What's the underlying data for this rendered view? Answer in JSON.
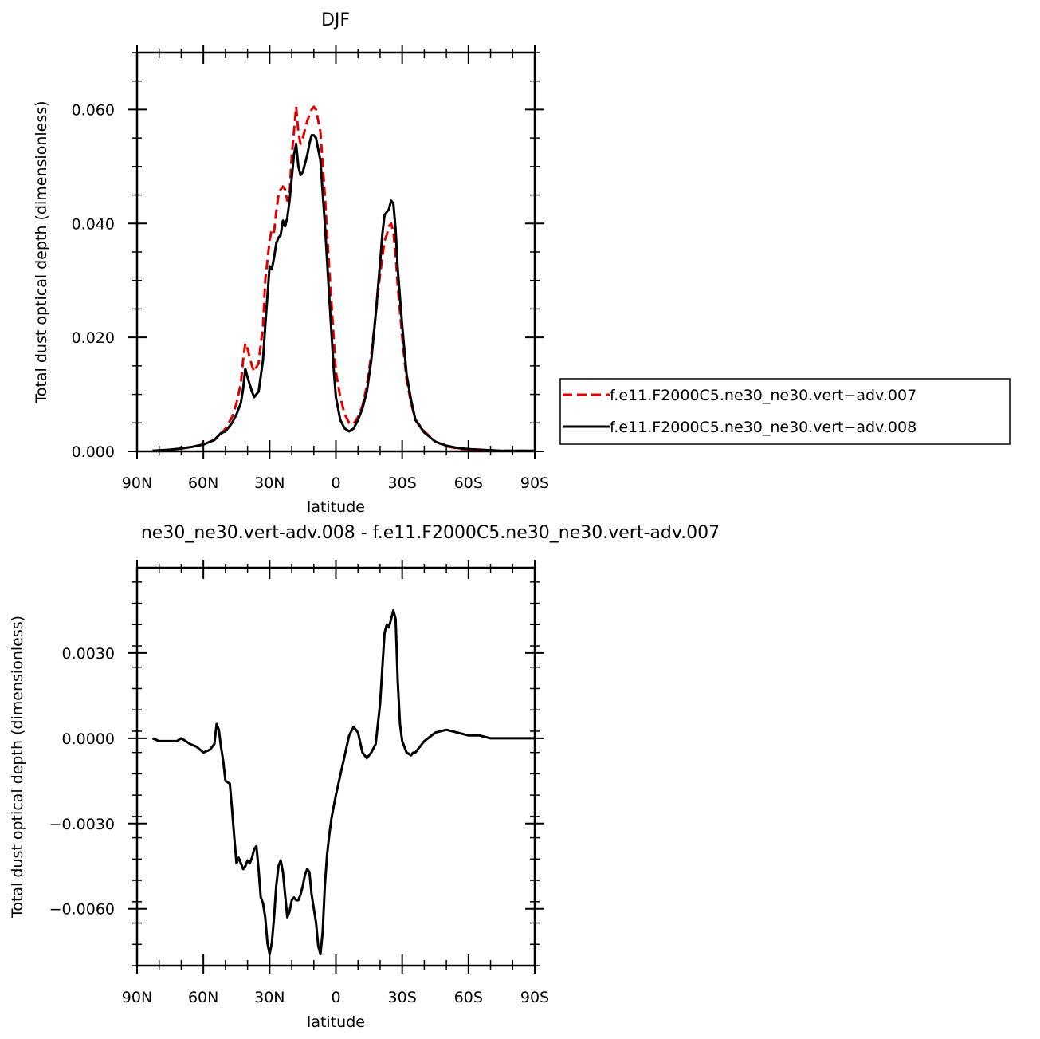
{
  "chart_data": [
    {
      "type": "line",
      "title": "DJF",
      "xlabel": "latitude",
      "ylabel": "Total dust optical depth (dimensionless)",
      "xlim": [
        90,
        -90
      ],
      "ylim": [
        0,
        0.07
      ],
      "x_ticks": [
        90,
        60,
        30,
        0,
        -30,
        -60,
        -90
      ],
      "x_tick_labels": [
        "90N",
        "60N",
        "30N",
        "0",
        "30S",
        "60S",
        "90S"
      ],
      "y_ticks": [
        0,
        0.02,
        0.04,
        0.06
      ],
      "y_tick_labels": [
        "0.000",
        "0.020",
        "0.040",
        "0.060"
      ],
      "legend_position": "right",
      "series": [
        {
          "name": "f.e11.F2000C5.ne30_ne30.vert-adv.007",
          "color": "#e00000",
          "dash": "dashed",
          "x": [
            83,
            75,
            70,
            65,
            60,
            55,
            52,
            50,
            47,
            45,
            43,
            42,
            41,
            40,
            38,
            37,
            35,
            33,
            32,
            30,
            29,
            28,
            27,
            26,
            25,
            24,
            23,
            22,
            21,
            20,
            19,
            18,
            17,
            16,
            15,
            13,
            12,
            11,
            10,
            9,
            7,
            5,
            3,
            1,
            0,
            -2,
            -4,
            -6,
            -8,
            -10,
            -12,
            -14,
            -16,
            -18,
            -20,
            -21,
            -22,
            -23,
            -24,
            -25,
            -26,
            -27,
            -28,
            -30,
            -32,
            -34,
            -36,
            -40,
            -45,
            -50,
            -55,
            -60,
            -65,
            -70,
            -75,
            -80,
            -90
          ],
          "y": [
            0.0001,
            0.0003,
            0.0005,
            0.0008,
            0.0012,
            0.002,
            0.003,
            0.004,
            0.006,
            0.0085,
            0.012,
            0.016,
            0.019,
            0.018,
            0.015,
            0.014,
            0.0155,
            0.022,
            0.03,
            0.037,
            0.039,
            0.0385,
            0.042,
            0.045,
            0.046,
            0.0465,
            0.046,
            0.044,
            0.045,
            0.052,
            0.056,
            0.0605,
            0.056,
            0.054,
            0.055,
            0.058,
            0.059,
            0.06,
            0.0605,
            0.06,
            0.056,
            0.045,
            0.032,
            0.02,
            0.014,
            0.0095,
            0.0065,
            0.005,
            0.0048,
            0.006,
            0.008,
            0.0115,
            0.017,
            0.024,
            0.031,
            0.034,
            0.037,
            0.038,
            0.0395,
            0.04,
            0.0385,
            0.0345,
            0.029,
            0.02,
            0.0125,
            0.0085,
            0.0055,
            0.0035,
            0.0017,
            0.0009,
            0.0005,
            0.0003,
            0.0002,
            0.0002,
            0.0001,
            0.0001,
            0.0001
          ]
        },
        {
          "name": "f.e11.F2000C5.ne30_ne30.vert-adv.008",
          "color": "#000000",
          "dash": "solid",
          "x": [
            83,
            75,
            70,
            65,
            60,
            55,
            52,
            50,
            47,
            45,
            43,
            42,
            41,
            40,
            38,
            37,
            35,
            33,
            32,
            30,
            29,
            28,
            27,
            26,
            25,
            24,
            23,
            22,
            21,
            20,
            19,
            18,
            17,
            16,
            15,
            13,
            12,
            11,
            10,
            9,
            7,
            5,
            3,
            1,
            0,
            -2,
            -4,
            -6,
            -8,
            -10,
            -12,
            -14,
            -16,
            -18,
            -20,
            -21,
            -22,
            -23,
            -24,
            -25,
            -26,
            -27,
            -28,
            -30,
            -32,
            -34,
            -36,
            -40,
            -45,
            -50,
            -55,
            -60,
            -65,
            -70,
            -75,
            -80,
            -90
          ],
          "y": [
            0.0001,
            0.0003,
            0.0005,
            0.0008,
            0.0012,
            0.002,
            0.0032,
            0.0035,
            0.005,
            0.0065,
            0.0085,
            0.011,
            0.0145,
            0.013,
            0.0105,
            0.0095,
            0.0105,
            0.016,
            0.022,
            0.0325,
            0.032,
            0.034,
            0.0365,
            0.0375,
            0.038,
            0.0405,
            0.0395,
            0.041,
            0.044,
            0.048,
            0.052,
            0.054,
            0.05,
            0.0485,
            0.049,
            0.052,
            0.054,
            0.0555,
            0.0555,
            0.055,
            0.051,
            0.04,
            0.027,
            0.0145,
            0.0095,
            0.0055,
            0.004,
            0.0035,
            0.004,
            0.0055,
            0.0075,
            0.0105,
            0.016,
            0.024,
            0.033,
            0.038,
            0.0415,
            0.042,
            0.0425,
            0.044,
            0.0435,
            0.039,
            0.032,
            0.022,
            0.0135,
            0.009,
            0.0055,
            0.0033,
            0.0017,
            0.001,
            0.0006,
            0.0004,
            0.0003,
            0.0002,
            0.0001,
            0.0001,
            0.0001
          ]
        }
      ]
    },
    {
      "type": "line",
      "title": "ne30_ne30.vert-adv.008 - f.e11.F2000C5.ne30_ne30.vert-adv.007",
      "xlabel": "latitude",
      "ylabel": "Total dust optical depth (dimensionless)",
      "xlim": [
        90,
        -90
      ],
      "ylim": [
        -0.008,
        0.006
      ],
      "x_ticks": [
        90,
        60,
        30,
        0,
        -30,
        -60,
        -90
      ],
      "x_tick_labels": [
        "90N",
        "60N",
        "30N",
        "0",
        "30S",
        "60S",
        "90S"
      ],
      "y_ticks": [
        -0.006,
        -0.003,
        0,
        0.003
      ],
      "y_tick_labels": [
        "-0.0060",
        "-0.0030",
        "0.0000",
        "0.0030"
      ],
      "series": [
        {
          "color": "#000000",
          "dash": "solid",
          "x": [
            83,
            80,
            75,
            72,
            70,
            68,
            66,
            63,
            60,
            57,
            55,
            54,
            53,
            52,
            51,
            50,
            48,
            47,
            46,
            45,
            44,
            43,
            42,
            41,
            40,
            39,
            38,
            37,
            36,
            35,
            34,
            33,
            32,
            31,
            30,
            29,
            28,
            27,
            26,
            25,
            24,
            23,
            22,
            21,
            20,
            19,
            18,
            17,
            16,
            15,
            14,
            13,
            12,
            11,
            10,
            9,
            8,
            7,
            6,
            5,
            4,
            3,
            2,
            1,
            0,
            -2,
            -4,
            -6,
            -8,
            -10,
            -12,
            -14,
            -16,
            -18,
            -20,
            -22,
            -23,
            -24,
            -25,
            -26,
            -27,
            -28,
            -29,
            -30,
            -31,
            -32,
            -34,
            -35,
            -36,
            -38,
            -40,
            -45,
            -50,
            -55,
            -60,
            -65,
            -70,
            -80,
            -90
          ],
          "y": [
            0.0,
            -0.0001,
            -0.0001,
            -0.0001,
            0.0,
            -0.0001,
            -0.0002,
            -0.0003,
            -0.0005,
            -0.0004,
            -0.0002,
            0.0005,
            0.0003,
            -0.0003,
            -0.0008,
            -0.0015,
            -0.0016,
            -0.0025,
            -0.0035,
            -0.0044,
            -0.0042,
            -0.0044,
            -0.0046,
            -0.0045,
            -0.0043,
            -0.0044,
            -0.0042,
            -0.0039,
            -0.0038,
            -0.0046,
            -0.0056,
            -0.0058,
            -0.0063,
            -0.0072,
            -0.0076,
            -0.0072,
            -0.0063,
            -0.0052,
            -0.0045,
            -0.0043,
            -0.0047,
            -0.0055,
            -0.0063,
            -0.0061,
            -0.0057,
            -0.0056,
            -0.0057,
            -0.0057,
            -0.0055,
            -0.0052,
            -0.0048,
            -0.0046,
            -0.0047,
            -0.0055,
            -0.006,
            -0.0065,
            -0.0073,
            -0.0076,
            -0.0068,
            -0.0052,
            -0.0041,
            -0.0034,
            -0.0028,
            -0.0024,
            -0.002,
            -0.0013,
            -0.0006,
            0.0001,
            0.0004,
            0.0002,
            -0.0005,
            -0.0007,
            -0.0005,
            -0.0002,
            0.0012,
            0.0037,
            0.004,
            0.0039,
            0.0042,
            0.0045,
            0.0042,
            0.002,
            0.0005,
            -0.0001,
            -0.0003,
            -0.0005,
            -0.0006,
            -0.0005,
            -0.0005,
            -0.0003,
            -0.0001,
            0.0002,
            0.0003,
            0.0002,
            0.0001,
            0.0001,
            0.0,
            0.0,
            0.0
          ]
        }
      ]
    }
  ]
}
